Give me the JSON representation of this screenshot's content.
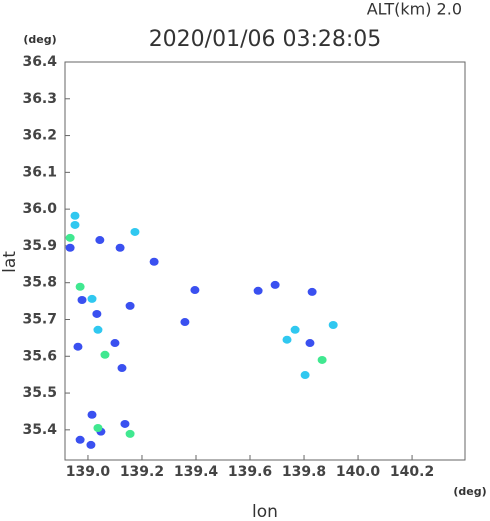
{
  "chart_data": {
    "type": "scatter",
    "title": "2020/01/06 03:28:05",
    "subtitle": "ALT(km) 2.0",
    "x_label": "lon",
    "y_label": "lat",
    "x_unit": "(deg)",
    "y_unit": "(deg)",
    "xlim": [
      138.915,
      140.396
    ],
    "ylim": [
      35.318,
      36.4
    ],
    "xticks": [
      {
        "value": 139.0,
        "label": "139.0"
      },
      139.2,
      139.4,
      139.6,
      139.8,
      {
        "value": 140.0,
        "label": "140.0"
      },
      140.2
    ],
    "yticks": [
      35.4,
      35.5,
      35.6,
      35.7,
      35.8,
      35.9,
      {
        "value": 36.0,
        "label": "36.0"
      },
      36.1,
      36.2,
      36.3,
      36.4
    ],
    "series": [
      {
        "color": "#3a50f0",
        "x": [
          138.934,
          138.978,
          139.033,
          138.963,
          139.1,
          139.015,
          139.048,
          139.011,
          139.137,
          139.044,
          139.119,
          139.245,
          139.396,
          139.63,
          139.693,
          139.83,
          139.822,
          139.359,
          139.156,
          139.126,
          138.971
        ],
        "values": [
          35.895,
          35.753,
          35.715,
          35.626,
          35.636,
          35.441,
          35.395,
          35.359,
          35.416,
          35.916,
          35.895,
          35.857,
          35.78,
          35.778,
          35.794,
          35.775,
          35.636,
          35.693,
          35.737,
          35.568,
          35.373
        ]
      },
      {
        "color": "#30c8f0",
        "x": [
          138.952,
          138.952,
          139.015,
          139.037,
          139.767,
          139.908,
          139.804,
          139.737,
          139.174
        ],
        "values": [
          35.982,
          35.957,
          35.756,
          35.672,
          35.672,
          35.685,
          35.549,
          35.645,
          35.938
        ]
      },
      {
        "color": "#40e890",
        "x": [
          138.934,
          138.971,
          139.063,
          139.156,
          139.037,
          139.867
        ],
        "values": [
          35.922,
          35.789,
          35.604,
          35.389,
          35.405,
          35.59
        ]
      }
    ]
  }
}
